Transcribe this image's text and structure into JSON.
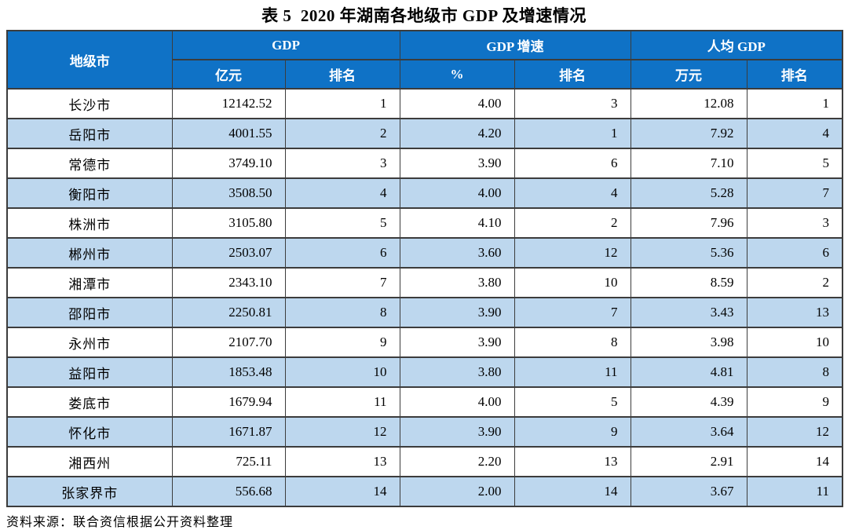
{
  "title": "表 5  2020 年湖南各地级市 GDP 及增速情况",
  "source_note": "资料来源：联合资信根据公开资料整理",
  "colors": {
    "header_bg": "#0f72c6",
    "stripe_bg": "#bdd7ee",
    "border_color": "#3c3c3c",
    "header_text": "#ffffff",
    "text_color": "#000000"
  },
  "table": {
    "group_headers": [
      {
        "label": "地级市"
      },
      {
        "label": "GDP"
      },
      {
        "label": "GDP 增速"
      },
      {
        "label": "人均 GDP"
      }
    ],
    "sub_headers": [
      "亿元",
      "排名",
      "%",
      "排名",
      "万元",
      "排名"
    ],
    "rows": [
      {
        "city": "长沙市",
        "gdp": "12142.52",
        "gdp_rank": "1",
        "growth": "4.00",
        "growth_rank": "3",
        "per_capita": "12.08",
        "per_capita_rank": "1"
      },
      {
        "city": "岳阳市",
        "gdp": "4001.55",
        "gdp_rank": "2",
        "growth": "4.20",
        "growth_rank": "1",
        "per_capita": "7.92",
        "per_capita_rank": "4"
      },
      {
        "city": "常德市",
        "gdp": "3749.10",
        "gdp_rank": "3",
        "growth": "3.90",
        "growth_rank": "6",
        "per_capita": "7.10",
        "per_capita_rank": "5"
      },
      {
        "city": "衡阳市",
        "gdp": "3508.50",
        "gdp_rank": "4",
        "growth": "4.00",
        "growth_rank": "4",
        "per_capita": "5.28",
        "per_capita_rank": "7"
      },
      {
        "city": "株洲市",
        "gdp": "3105.80",
        "gdp_rank": "5",
        "growth": "4.10",
        "growth_rank": "2",
        "per_capita": "7.96",
        "per_capita_rank": "3"
      },
      {
        "city": "郴州市",
        "gdp": "2503.07",
        "gdp_rank": "6",
        "growth": "3.60",
        "growth_rank": "12",
        "per_capita": "5.36",
        "per_capita_rank": "6"
      },
      {
        "city": "湘潭市",
        "gdp": "2343.10",
        "gdp_rank": "7",
        "growth": "3.80",
        "growth_rank": "10",
        "per_capita": "8.59",
        "per_capita_rank": "2"
      },
      {
        "city": "邵阳市",
        "gdp": "2250.81",
        "gdp_rank": "8",
        "growth": "3.90",
        "growth_rank": "7",
        "per_capita": "3.43",
        "per_capita_rank": "13"
      },
      {
        "city": "永州市",
        "gdp": "2107.70",
        "gdp_rank": "9",
        "growth": "3.90",
        "growth_rank": "8",
        "per_capita": "3.98",
        "per_capita_rank": "10"
      },
      {
        "city": "益阳市",
        "gdp": "1853.48",
        "gdp_rank": "10",
        "growth": "3.80",
        "growth_rank": "11",
        "per_capita": "4.81",
        "per_capita_rank": "8"
      },
      {
        "city": "娄底市",
        "gdp": "1679.94",
        "gdp_rank": "11",
        "growth": "4.00",
        "growth_rank": "5",
        "per_capita": "4.39",
        "per_capita_rank": "9"
      },
      {
        "city": "怀化市",
        "gdp": "1671.87",
        "gdp_rank": "12",
        "growth": "3.90",
        "growth_rank": "9",
        "per_capita": "3.64",
        "per_capita_rank": "12"
      },
      {
        "city": "湘西州",
        "gdp": "725.11",
        "gdp_rank": "13",
        "growth": "2.20",
        "growth_rank": "13",
        "per_capita": "2.91",
        "per_capita_rank": "14"
      },
      {
        "city": "张家界市",
        "gdp": "556.68",
        "gdp_rank": "14",
        "growth": "2.00",
        "growth_rank": "14",
        "per_capita": "3.67",
        "per_capita_rank": "11"
      }
    ]
  }
}
